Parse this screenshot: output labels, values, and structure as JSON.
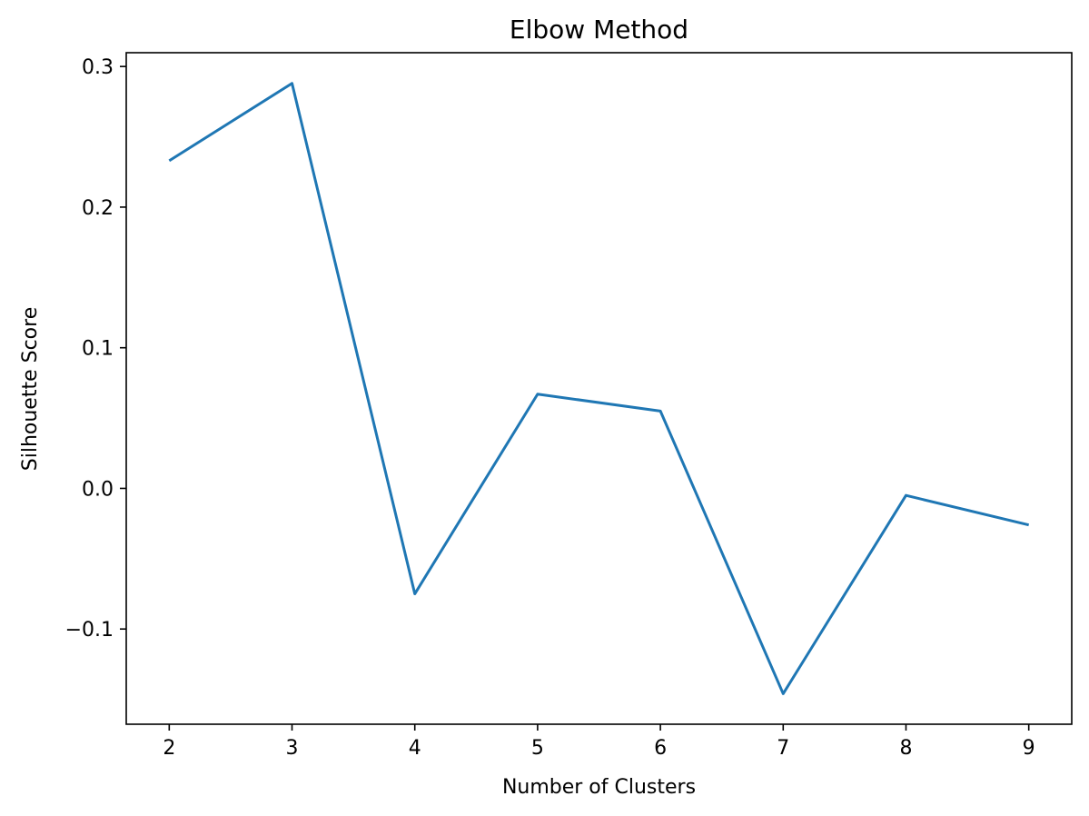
{
  "chart_data": {
    "type": "line",
    "title": "Elbow Method",
    "xlabel": "Number of Clusters",
    "ylabel": "Silhouette Score",
    "x": [
      2,
      3,
      4,
      5,
      6,
      7,
      8,
      9
    ],
    "series": [
      {
        "values": [
          0.233,
          0.288,
          -0.075,
          0.067,
          0.055,
          -0.146,
          -0.005,
          -0.026
        ],
        "color": "#1f77b4"
      }
    ],
    "xticks": [
      2,
      3,
      4,
      5,
      6,
      7,
      8,
      9
    ],
    "xtick_labels": [
      "2",
      "3",
      "4",
      "5",
      "6",
      "7",
      "8",
      "9"
    ],
    "yticks": [
      -0.1,
      0.0,
      0.1,
      0.2,
      0.3
    ],
    "ytick_labels": [
      "−0.1",
      "0.0",
      "0.1",
      "0.2",
      "0.3"
    ],
    "xlim": [
      1.65,
      9.35
    ],
    "ylim": [
      -0.1677,
      0.3098
    ],
    "grid": false,
    "legend": false
  }
}
